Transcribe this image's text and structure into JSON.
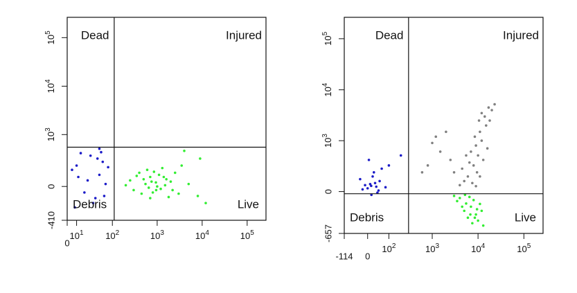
{
  "chart_data": [
    {
      "type": "scatter",
      "scale": "biexponential",
      "quadrants": {
        "top_left": "Dead",
        "top_right": "Injured",
        "bottom_left": "Debris",
        "bottom_right": "Live"
      },
      "gate": {
        "x": 110,
        "y": 540
      },
      "xlim": [
        0,
        262144
      ],
      "ylim": [
        -410,
        262144
      ],
      "xticks": [
        0,
        {
          "value": 10,
          "label": "10",
          "sup": "1"
        },
        {
          "value": 100,
          "label": "10",
          "sup": "2"
        },
        {
          "value": 1000,
          "label": "10",
          "sup": "3"
        },
        {
          "value": 10000,
          "label": "10",
          "sup": "4"
        },
        {
          "value": 100000,
          "label": "10",
          "sup": "5"
        }
      ],
      "yticks": [
        -410,
        0,
        {
          "value": 1000,
          "label": "10",
          "sup": "3"
        },
        {
          "value": 10000,
          "label": "10",
          "sup": "4"
        },
        {
          "value": 100000,
          "label": "10",
          "sup": "5"
        }
      ],
      "series": [
        {
          "color": "#1c1cc8",
          "x": [
            10,
            30,
            50,
            20,
            60,
            5,
            40,
            70,
            15,
            45,
            25,
            80,
            35,
            55,
            12,
            65,
            8,
            50
          ],
          "values": [
            200,
            350,
            100,
            -50,
            250,
            150,
            -100,
            20,
            400,
            300,
            50,
            180,
            -150,
            420,
            80,
            -80,
            -200,
            500
          ]
        },
        {
          "color": "#33ee33",
          "x": [
            936,
            700,
            1200,
            500,
            1500,
            800,
            400,
            2000,
            3000,
            600,
            1100,
            250,
            300,
            5000,
            8000,
            1800,
            650,
            1300,
            2500,
            9000,
            4000,
            200,
            350,
            12000,
            700,
            1000,
            1600,
            850,
            450,
            2200,
            3500,
            550,
            750,
            950,
            1400
          ],
          "values": [
            33,
            80,
            -20,
            60,
            10,
            -50,
            120,
            40,
            -60,
            150,
            100,
            50,
            -30,
            20,
            -80,
            -90,
            -10,
            170,
            120,
            300,
            450,
            10,
            90,
            -150,
            -100,
            0,
            60,
            130,
            -60,
            -30,
            200,
            20,
            40,
            -30,
            80
          ]
        }
      ]
    },
    {
      "type": "scatter",
      "scale": "biexponential",
      "quadrants": {
        "top_left": "Dead",
        "top_right": "Injured",
        "bottom_left": "Debris",
        "bottom_right": "Live"
      },
      "gate": {
        "x": 300,
        "y": -20
      },
      "xlim": [
        -114,
        262144
      ],
      "ylim": [
        -657,
        262144
      ],
      "xticks": [
        -114,
        0,
        {
          "value": 100,
          "label": "10",
          "sup": "2"
        },
        {
          "value": 1000,
          "label": "10",
          "sup": "3"
        },
        {
          "value": 10000,
          "label": "10",
          "sup": "4"
        },
        {
          "value": 100000,
          "label": "10",
          "sup": "5"
        }
      ],
      "yticks": [
        -657,
        0,
        {
          "value": 1000,
          "label": "10",
          "sup": "3"
        },
        {
          "value": 10000,
          "label": "10",
          "sup": "4"
        },
        {
          "value": 100000,
          "label": "10",
          "sup": "5"
        }
      ],
      "series": [
        {
          "color": "#808080",
          "x": [
            8000,
            6000,
            10000,
            12000,
            15000,
            9000,
            5000,
            4000,
            3000,
            7000,
            11000,
            14000,
            20000,
            23000,
            18000,
            13000,
            9500,
            6500,
            8500,
            7500,
            16000,
            10500,
            2500,
            1500,
            800,
            1000,
            12000,
            17000,
            5500,
            4500,
            9000,
            11000,
            600,
            1200,
            2000
          ],
          "values": [
            300,
            150,
            500,
            1000,
            2000,
            800,
            100,
            60,
            200,
            600,
            1500,
            3000,
            4000,
            5200,
            2500,
            400,
            200,
            350,
            1200,
            80,
            700,
            2500,
            400,
            600,
            300,
            900,
            3500,
            4500,
            500,
            250,
            50,
            150,
            200,
            1200,
            1500
          ]
        },
        {
          "color": "#33ee33",
          "x": [
            5500,
            4000,
            7000,
            9000,
            3000,
            6000,
            8000,
            10000,
            12000,
            5000,
            6500,
            7500,
            11000,
            4500,
            8500,
            3500,
            9500,
            6800,
            13000,
            5200
          ],
          "values": [
            -115,
            -60,
            -150,
            -250,
            -40,
            -300,
            -80,
            -350,
            -200,
            -200,
            -50,
            -400,
            -120,
            -150,
            -300,
            -90,
            -180,
            -250,
            -450,
            -30
          ]
        },
        {
          "color": "#1c1cc8",
          "x": [
            14,
            0,
            30,
            -20,
            50,
            20,
            -10,
            60,
            40,
            5,
            80,
            25,
            10,
            35,
            -30,
            100,
            15,
            45,
            200
          ],
          "values": [
            53,
            30,
            80,
            20,
            100,
            150,
            60,
            250,
            -10,
            400,
            40,
            200,
            70,
            45,
            120,
            300,
            -30,
            10,
            500
          ]
        }
      ]
    }
  ]
}
